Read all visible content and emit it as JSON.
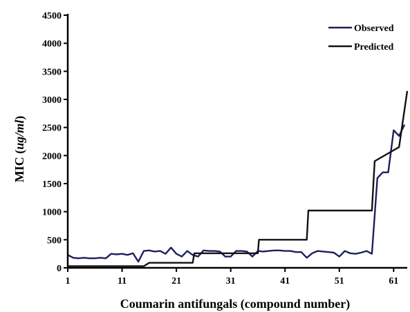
{
  "chart_data": {
    "type": "line",
    "title": "",
    "xlabel": "Coumarin antifungals (compound number)",
    "ylabel_parts": {
      "prefix": "MIC (",
      "unit": "ug/ml",
      "suffix": ")"
    },
    "xlim": [
      1,
      63.5
    ],
    "ylim": [
      0,
      4500
    ],
    "x_ticks": [
      1,
      11,
      21,
      31,
      41,
      51,
      61
    ],
    "y_ticks": [
      0,
      500,
      1000,
      1500,
      2000,
      2500,
      3000,
      3500,
      4000,
      4500
    ],
    "grid": false,
    "legend_position": "top-right",
    "colors": {
      "Observed": "#1c1f5e",
      "Predicted": "#111111"
    },
    "series": [
      {
        "name": "Observed",
        "points": [
          [
            1,
            230
          ],
          [
            2,
            180
          ],
          [
            3,
            170
          ],
          [
            4,
            180
          ],
          [
            5,
            170
          ],
          [
            6,
            170
          ],
          [
            7,
            180
          ],
          [
            8,
            170
          ],
          [
            9,
            250
          ],
          [
            10,
            240
          ],
          [
            11,
            250
          ],
          [
            12,
            230
          ],
          [
            13,
            260
          ],
          [
            14,
            110
          ],
          [
            15,
            300
          ],
          [
            16,
            310
          ],
          [
            17,
            290
          ],
          [
            18,
            300
          ],
          [
            19,
            250
          ],
          [
            20,
            360
          ],
          [
            21,
            250
          ],
          [
            22,
            200
          ],
          [
            23,
            300
          ],
          [
            24,
            230
          ],
          [
            25,
            200
          ],
          [
            26,
            310
          ],
          [
            27,
            300
          ],
          [
            28,
            300
          ],
          [
            29,
            290
          ],
          [
            30,
            200
          ],
          [
            31,
            200
          ],
          [
            32,
            300
          ],
          [
            33,
            300
          ],
          [
            34,
            290
          ],
          [
            35,
            200
          ],
          [
            36,
            300
          ],
          [
            37,
            290
          ],
          [
            38,
            300
          ],
          [
            39,
            310
          ],
          [
            40,
            310
          ],
          [
            41,
            300
          ],
          [
            42,
            300
          ],
          [
            43,
            280
          ],
          [
            44,
            280
          ],
          [
            45,
            180
          ],
          [
            46,
            260
          ],
          [
            47,
            300
          ],
          [
            48,
            290
          ],
          [
            49,
            280
          ],
          [
            50,
            270
          ],
          [
            51,
            200
          ],
          [
            52,
            300
          ],
          [
            53,
            260
          ],
          [
            54,
            250
          ],
          [
            55,
            270
          ],
          [
            56,
            300
          ],
          [
            57,
            250
          ],
          [
            58,
            1600
          ],
          [
            59,
            1700
          ],
          [
            60,
            1700
          ],
          [
            61,
            2450
          ],
          [
            62,
            2350
          ],
          [
            63,
            2550
          ]
        ]
      },
      {
        "name": "Predicted",
        "points": [
          [
            1,
            30
          ],
          [
            15,
            30
          ],
          [
            16,
            90
          ],
          [
            24,
            90
          ],
          [
            24.3,
            260
          ],
          [
            36,
            260
          ],
          [
            36.2,
            500
          ],
          [
            45,
            500
          ],
          [
            45.3,
            1020
          ],
          [
            57,
            1020
          ],
          [
            57.5,
            1900
          ],
          [
            62,
            2150
          ],
          [
            63.5,
            3150
          ]
        ]
      }
    ]
  }
}
